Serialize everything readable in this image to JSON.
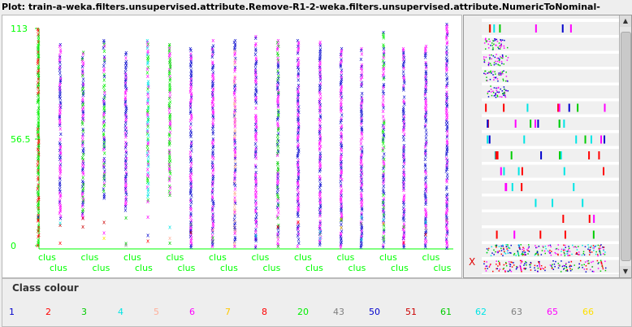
{
  "window": {
    "title": "Plot: train-a-weka.filters.unsupervised.attribute.Remove-R1-2-weka.filters.unsupervised.attribute.NumericToNominal-"
  },
  "plot": {
    "y_axis_ticks": [
      "113",
      "56.5",
      "0"
    ],
    "x_tick_labels_top": [
      "clus",
      "clus",
      "clus",
      "clus",
      "clus",
      "clus",
      "clus",
      "clus",
      "clus",
      "clus"
    ],
    "x_tick_labels_bottom": [
      "clus",
      "clus",
      "clus",
      "clus",
      "clus",
      "clus",
      "clus",
      "clus",
      "clus",
      "clus"
    ],
    "axis_color": "#00ff00"
  },
  "side_panel": {
    "marker": "X"
  },
  "legend": {
    "title": "Class colour",
    "items": [
      {
        "label": "1",
        "color": "#0000cc"
      },
      {
        "label": "2",
        "color": "#ff0000"
      },
      {
        "label": "3",
        "color": "#00cc00"
      },
      {
        "label": "4",
        "color": "#00e5e5"
      },
      {
        "label": "5",
        "color": "#ffaf9a"
      },
      {
        "label": "6",
        "color": "#ff00ff"
      },
      {
        "label": "7",
        "color": "#ffc800"
      },
      {
        "label": "8",
        "color": "#ff0000"
      },
      {
        "label": "20",
        "color": "#00ee00"
      },
      {
        "label": "43",
        "color": "#808080"
      },
      {
        "label": "50",
        "color": "#0000cc"
      },
      {
        "label": "51",
        "color": "#cc0000"
      },
      {
        "label": "61",
        "color": "#00cc00"
      },
      {
        "label": "62",
        "color": "#00e5e5"
      },
      {
        "label": "63",
        "color": "#808080"
      },
      {
        "label": "65",
        "color": "#ff00ff"
      },
      {
        "label": "66",
        "color": "#ffe000"
      }
    ]
  }
}
